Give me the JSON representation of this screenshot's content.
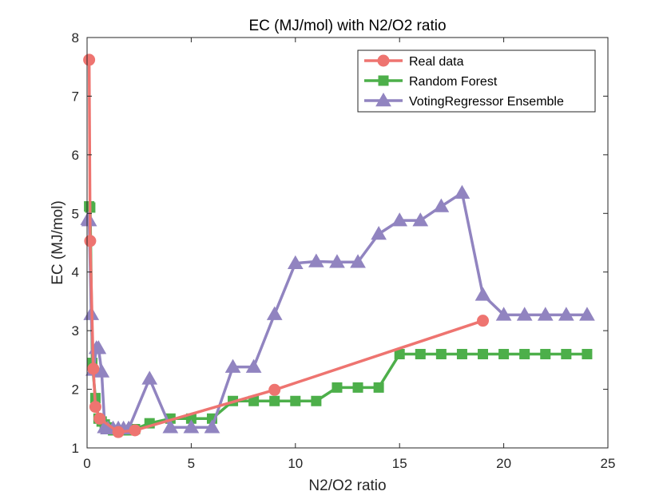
{
  "chart_data": {
    "type": "line",
    "title": "EC (MJ/mol) with N2/O2 ratio",
    "xlabel": "N2/O2 ratio",
    "ylabel": "EC (MJ/mol)",
    "xlim": [
      0,
      25
    ],
    "ylim": [
      1,
      8
    ],
    "xticks": [
      0,
      5,
      10,
      15,
      20,
      25
    ],
    "yticks": [
      1,
      2,
      3,
      4,
      5,
      6,
      7,
      8
    ],
    "grid": false,
    "legend_position": "top-right",
    "series": [
      {
        "name": "Real data",
        "color": "#ee7470",
        "marker": "circle",
        "x": [
          0.1,
          0.15,
          0.3,
          0.4,
          0.6,
          1.5,
          2.3,
          9,
          19
        ],
        "y": [
          7.62,
          4.53,
          2.35,
          1.7,
          1.5,
          1.27,
          1.3,
          1.99,
          3.17
        ]
      },
      {
        "name": "Random Forest",
        "color": "#4daf4a",
        "marker": "square",
        "x": [
          0.1,
          0.15,
          0.25,
          0.4,
          0.55,
          0.7,
          0.85,
          1,
          1.25,
          1.5,
          1.75,
          2,
          2.3,
          3,
          4,
          5,
          6,
          7,
          8,
          9,
          10,
          11,
          12,
          13,
          14,
          15,
          16,
          17,
          18,
          19,
          20,
          21,
          22,
          23,
          24
        ],
        "y": [
          5.12,
          5.1,
          2.45,
          1.85,
          1.5,
          1.45,
          1.4,
          1.35,
          1.3,
          1.3,
          1.3,
          1.3,
          1.32,
          1.42,
          1.5,
          1.5,
          1.5,
          1.8,
          1.8,
          1.8,
          1.8,
          1.8,
          2.03,
          2.03,
          2.03,
          2.6,
          2.6,
          2.6,
          2.6,
          2.6,
          2.6,
          2.6,
          2.6,
          2.6,
          2.6
        ]
      },
      {
        "name": "VotingRegressor Ensemble",
        "color": "#9184c0",
        "marker": "triangle",
        "x": [
          0.05,
          0.1,
          0.2,
          0.3,
          0.45,
          0.55,
          0.7,
          0.85,
          1,
          1.25,
          1.5,
          1.75,
          2,
          3,
          4,
          5,
          6,
          7,
          8,
          9,
          10,
          11,
          12,
          13,
          14,
          15,
          16,
          17,
          18,
          19,
          20,
          21,
          22,
          23,
          24
        ],
        "y": [
          4.9,
          4.88,
          3.28,
          2.33,
          2.7,
          2.7,
          2.3,
          1.35,
          1.33,
          1.33,
          1.33,
          1.33,
          1.33,
          2.18,
          1.35,
          1.35,
          1.35,
          2.38,
          2.38,
          3.28,
          4.15,
          4.18,
          4.17,
          4.17,
          4.65,
          4.88,
          4.88,
          5.12,
          5.35,
          3.61,
          3.27,
          3.27,
          3.27,
          3.27,
          3.27
        ]
      }
    ]
  }
}
